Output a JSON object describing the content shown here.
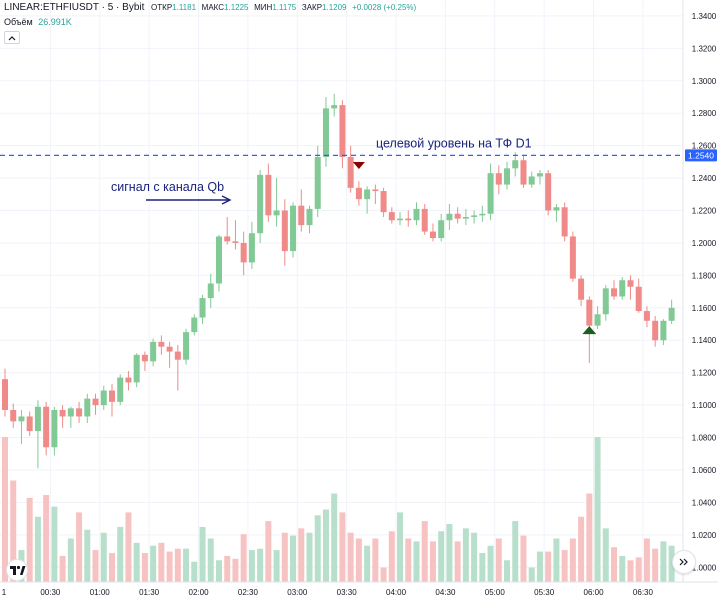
{
  "legend": {
    "symbol": "LINEAR:ETHFIUSDT · 5 · Bybit",
    "open_label": "ОТКР",
    "open": "1.1181",
    "high_label": "МАКС",
    "high": "1.1225",
    "low_label": "МИН",
    "low": "1.1175",
    "close_label": "ЗАКР",
    "close": "1.1209",
    "change": "+0.0028 (+0.25%)",
    "volume_label": "Объём",
    "volume": "26.991K"
  },
  "icons": {
    "collapse": "chevron-up-icon",
    "logo": "tradingview-logo",
    "scroll": "double-chevron-right-icon",
    "signal_arrow": "arrow-right-icon",
    "sell_marker": "triangle-down-icon",
    "buy_marker": "triangle-up-icon"
  },
  "colors": {
    "up": "#26a69a",
    "down": "#ef5350",
    "level_line": "#2962ff",
    "annotation": "#1a237e",
    "sell_marker": "#8b0000",
    "buy_marker": "#1b5e20"
  },
  "chart_data": {
    "type": "candlestick",
    "timeframe": "5",
    "x_tick_labels": [
      "1",
      "00:30",
      "01:00",
      "01:30",
      "02:00",
      "02:30",
      "03:00",
      "03:30",
      "04:00",
      "04:30",
      "05:00",
      "05:30",
      "06:00",
      "06:30"
    ],
    "y_tick_labels": [
      "1.3400",
      "1.3200",
      "1.3000",
      "1.2800",
      "1.2600",
      "1.2400",
      "1.2200",
      "1.2000",
      "1.1800",
      "1.1600",
      "1.1400",
      "1.1200",
      "1.1000",
      "1.0800",
      "1.0600",
      "1.0400",
      "1.0200",
      "1.0000"
    ],
    "price_range": [
      0.994,
      1.3455
    ],
    "level": {
      "value": 1.254,
      "label": "1.2540",
      "text": "целевой уровень на ТФ D1"
    },
    "annotation_signal": "сигнал с канала Qb",
    "candles": [
      {
        "o": 1.116,
        "h": 1.1225,
        "l": 1.093,
        "c": 1.097
      },
      {
        "o": 1.097,
        "h": 1.101,
        "l": 1.086,
        "c": 1.09
      },
      {
        "o": 1.09,
        "h": 1.097,
        "l": 1.076,
        "c": 1.093
      },
      {
        "o": 1.093,
        "h": 1.096,
        "l": 1.081,
        "c": 1.084
      },
      {
        "o": 1.084,
        "h": 1.103,
        "l": 1.061,
        "c": 1.099
      },
      {
        "o": 1.099,
        "h": 1.102,
        "l": 1.069,
        "c": 1.074
      },
      {
        "o": 1.074,
        "h": 1.099,
        "l": 1.069,
        "c": 1.097
      },
      {
        "o": 1.097,
        "h": 1.1,
        "l": 1.086,
        "c": 1.093
      },
      {
        "o": 1.093,
        "h": 1.099,
        "l": 1.086,
        "c": 1.098
      },
      {
        "o": 1.098,
        "h": 1.102,
        "l": 1.089,
        "c": 1.093
      },
      {
        "o": 1.093,
        "h": 1.107,
        "l": 1.089,
        "c": 1.104
      },
      {
        "o": 1.104,
        "h": 1.107,
        "l": 1.094,
        "c": 1.1
      },
      {
        "o": 1.1,
        "h": 1.112,
        "l": 1.097,
        "c": 1.109
      },
      {
        "o": 1.109,
        "h": 1.113,
        "l": 1.093,
        "c": 1.102
      },
      {
        "o": 1.102,
        "h": 1.119,
        "l": 1.1,
        "c": 1.117
      },
      {
        "o": 1.117,
        "h": 1.121,
        "l": 1.109,
        "c": 1.114
      },
      {
        "o": 1.114,
        "h": 1.132,
        "l": 1.111,
        "c": 1.131
      },
      {
        "o": 1.131,
        "h": 1.133,
        "l": 1.121,
        "c": 1.127
      },
      {
        "o": 1.127,
        "h": 1.141,
        "l": 1.124,
        "c": 1.139
      },
      {
        "o": 1.139,
        "h": 1.143,
        "l": 1.131,
        "c": 1.136
      },
      {
        "o": 1.136,
        "h": 1.139,
        "l": 1.123,
        "c": 1.133
      },
      {
        "o": 1.133,
        "h": 1.137,
        "l": 1.109,
        "c": 1.128
      },
      {
        "o": 1.128,
        "h": 1.147,
        "l": 1.125,
        "c": 1.145
      },
      {
        "o": 1.145,
        "h": 1.156,
        "l": 1.143,
        "c": 1.154
      },
      {
        "o": 1.154,
        "h": 1.168,
        "l": 1.15,
        "c": 1.166
      },
      {
        "o": 1.166,
        "h": 1.181,
        "l": 1.16,
        "c": 1.175
      },
      {
        "o": 1.175,
        "h": 1.205,
        "l": 1.17,
        "c": 1.204
      },
      {
        "o": 1.204,
        "h": 1.216,
        "l": 1.199,
        "c": 1.201
      },
      {
        "o": 1.201,
        "h": 1.214,
        "l": 1.196,
        "c": 1.2
      },
      {
        "o": 1.2,
        "h": 1.207,
        "l": 1.18,
        "c": 1.188
      },
      {
        "o": 1.188,
        "h": 1.213,
        "l": 1.184,
        "c": 1.206
      },
      {
        "o": 1.206,
        "h": 1.245,
        "l": 1.2,
        "c": 1.242
      },
      {
        "o": 1.242,
        "h": 1.249,
        "l": 1.213,
        "c": 1.217
      },
      {
        "o": 1.217,
        "h": 1.24,
        "l": 1.21,
        "c": 1.22
      },
      {
        "o": 1.22,
        "h": 1.227,
        "l": 1.186,
        "c": 1.195
      },
      {
        "o": 1.195,
        "h": 1.225,
        "l": 1.191,
        "c": 1.223
      },
      {
        "o": 1.223,
        "h": 1.233,
        "l": 1.207,
        "c": 1.211
      },
      {
        "o": 1.211,
        "h": 1.223,
        "l": 1.206,
        "c": 1.221
      },
      {
        "o": 1.221,
        "h": 1.26,
        "l": 1.216,
        "c": 1.253
      },
      {
        "o": 1.253,
        "h": 1.29,
        "l": 1.247,
        "c": 1.283
      },
      {
        "o": 1.283,
        "h": 1.292,
        "l": 1.278,
        "c": 1.285
      },
      {
        "o": 1.285,
        "h": 1.288,
        "l": 1.246,
        "c": 1.253
      },
      {
        "o": 1.253,
        "h": 1.26,
        "l": 1.231,
        "c": 1.234
      },
      {
        "o": 1.234,
        "h": 1.238,
        "l": 1.223,
        "c": 1.227
      },
      {
        "o": 1.227,
        "h": 1.235,
        "l": 1.218,
        "c": 1.233
      },
      {
        "o": 1.233,
        "h": 1.236,
        "l": 1.224,
        "c": 1.232
      },
      {
        "o": 1.232,
        "h": 1.234,
        "l": 1.216,
        "c": 1.219
      },
      {
        "o": 1.219,
        "h": 1.222,
        "l": 1.212,
        "c": 1.214
      },
      {
        "o": 1.214,
        "h": 1.219,
        "l": 1.211,
        "c": 1.215
      },
      {
        "o": 1.215,
        "h": 1.22,
        "l": 1.21,
        "c": 1.214
      },
      {
        "o": 1.214,
        "h": 1.225,
        "l": 1.211,
        "c": 1.221
      },
      {
        "o": 1.221,
        "h": 1.224,
        "l": 1.205,
        "c": 1.207
      },
      {
        "o": 1.207,
        "h": 1.212,
        "l": 1.201,
        "c": 1.203
      },
      {
        "o": 1.203,
        "h": 1.218,
        "l": 1.201,
        "c": 1.214
      },
      {
        "o": 1.214,
        "h": 1.224,
        "l": 1.208,
        "c": 1.218
      },
      {
        "o": 1.218,
        "h": 1.222,
        "l": 1.212,
        "c": 1.215
      },
      {
        "o": 1.215,
        "h": 1.221,
        "l": 1.211,
        "c": 1.216
      },
      {
        "o": 1.216,
        "h": 1.22,
        "l": 1.212,
        "c": 1.217
      },
      {
        "o": 1.217,
        "h": 1.223,
        "l": 1.213,
        "c": 1.218
      },
      {
        "o": 1.218,
        "h": 1.249,
        "l": 1.214,
        "c": 1.243
      },
      {
        "o": 1.243,
        "h": 1.248,
        "l": 1.23,
        "c": 1.236
      },
      {
        "o": 1.236,
        "h": 1.25,
        "l": 1.233,
        "c": 1.246
      },
      {
        "o": 1.246,
        "h": 1.256,
        "l": 1.241,
        "c": 1.251
      },
      {
        "o": 1.251,
        "h": 1.254,
        "l": 1.234,
        "c": 1.236
      },
      {
        "o": 1.236,
        "h": 1.244,
        "l": 1.234,
        "c": 1.241
      },
      {
        "o": 1.241,
        "h": 1.245,
        "l": 1.236,
        "c": 1.243
      },
      {
        "o": 1.243,
        "h": 1.245,
        "l": 1.217,
        "c": 1.22
      },
      {
        "o": 1.22,
        "h": 1.224,
        "l": 1.213,
        "c": 1.222
      },
      {
        "o": 1.222,
        "h": 1.225,
        "l": 1.201,
        "c": 1.204
      },
      {
        "o": 1.204,
        "h": 1.207,
        "l": 1.176,
        "c": 1.178
      },
      {
        "o": 1.178,
        "h": 1.18,
        "l": 1.161,
        "c": 1.165
      },
      {
        "o": 1.165,
        "h": 1.167,
        "l": 1.126,
        "c": 1.149
      },
      {
        "o": 1.149,
        "h": 1.161,
        "l": 1.147,
        "c": 1.156
      },
      {
        "o": 1.156,
        "h": 1.174,
        "l": 1.152,
        "c": 1.172
      },
      {
        "o": 1.172,
        "h": 1.177,
        "l": 1.165,
        "c": 1.167
      },
      {
        "o": 1.167,
        "h": 1.179,
        "l": 1.165,
        "c": 1.177
      },
      {
        "o": 1.177,
        "h": 1.18,
        "l": 1.165,
        "c": 1.173
      },
      {
        "o": 1.173,
        "h": 1.178,
        "l": 1.157,
        "c": 1.158
      },
      {
        "o": 1.158,
        "h": 1.161,
        "l": 1.148,
        "c": 1.152
      },
      {
        "o": 1.152,
        "h": 1.155,
        "l": 1.136,
        "c": 1.14
      },
      {
        "o": 1.14,
        "h": 1.153,
        "l": 1.137,
        "c": 1.152
      },
      {
        "o": 1.152,
        "h": 1.165,
        "l": 1.15,
        "c": 1.16
      }
    ],
    "volume": {
      "max_scale": 100,
      "values": [
        100,
        70,
        22,
        58,
        45,
        60,
        52,
        18,
        30,
        48,
        36,
        22,
        34,
        20,
        38,
        48,
        27,
        20,
        25,
        27,
        21,
        23,
        23,
        14,
        38,
        30,
        15,
        18,
        16,
        33,
        22,
        23,
        42,
        22,
        34,
        32,
        37,
        34,
        46,
        50,
        61,
        48,
        34,
        30,
        25,
        30,
        10,
        35,
        48,
        30,
        28,
        42,
        28,
        35,
        40,
        28,
        37,
        34,
        20,
        25,
        30,
        15,
        42,
        32,
        10,
        21,
        21,
        30,
        22,
        30,
        45,
        61,
        100,
        37,
        24,
        18,
        15,
        17,
        30,
        23,
        28,
        25
      ]
    }
  }
}
